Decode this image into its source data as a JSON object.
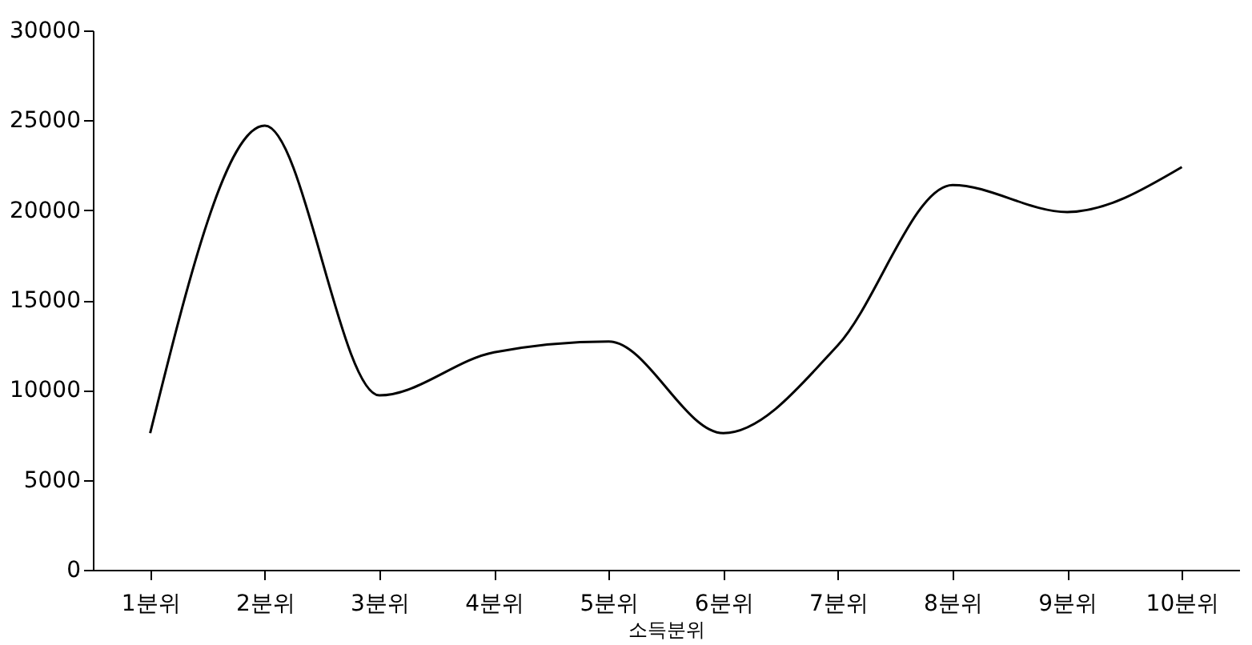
{
  "chart_data": {
    "type": "line",
    "xlabel": "소득분위",
    "categories": [
      "1분위",
      "2분위",
      "3분위",
      "4분위",
      "5분위",
      "6분위",
      "7분위",
      "8분위",
      "9분위",
      "10분위"
    ],
    "series": [
      {
        "color": "#000000",
        "values": [
          7600,
          24700,
          9700,
          12100,
          12700,
          7600,
          12500,
          21400,
          19900,
          22400
        ]
      }
    ],
    "ylim": [
      0,
      30000
    ],
    "yticks": [
      0,
      5000,
      10000,
      15000,
      20000,
      25000,
      30000
    ],
    "grid": false,
    "marker": "none",
    "line_style": "solid"
  }
}
